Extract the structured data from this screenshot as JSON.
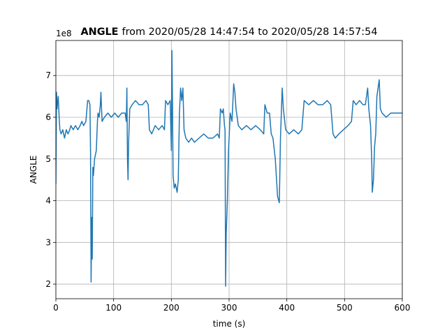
{
  "chart_data": {
    "type": "line",
    "title_bold": "ANGLE",
    "title_rest": "from 2020/05/28 14:47:54 to 2020/05/28 14:57:54",
    "offset_text": "1e8",
    "xlabel": "time (s)",
    "ylabel": "ANGLE",
    "xlim": [
      0,
      600
    ],
    "xticks": [
      0,
      100,
      200,
      300,
      400,
      500,
      600
    ],
    "ylim": [
      1.65,
      7.84
    ],
    "yticks": [
      2,
      3,
      4,
      5,
      6,
      7
    ],
    "grid": true,
    "series": [
      {
        "name": "ANGLE",
        "color": "#1f77b4",
        "x": [
          0,
          1,
          2,
          4,
          6,
          7,
          9,
          12,
          15,
          18,
          21,
          24,
          26,
          30,
          34,
          38,
          42,
          45,
          48,
          52,
          55,
          57,
          59,
          60,
          61,
          62,
          63,
          64,
          65,
          67,
          70,
          72,
          73,
          75,
          77,
          78,
          80,
          84,
          90,
          96,
          102,
          108,
          114,
          120,
          122,
          123,
          124,
          125,
          126,
          128,
          132,
          138,
          144,
          150,
          156,
          160,
          162,
          166,
          172,
          178,
          184,
          188,
          190,
          194,
          198,
          200,
          201,
          202,
          203,
          205,
          207,
          210,
          212,
          214,
          216,
          218,
          220,
          222,
          225,
          230,
          235,
          240,
          248,
          256,
          264,
          272,
          280,
          283,
          285,
          288,
          290,
          292,
          293,
          294,
          295,
          297,
          299,
          302,
          305,
          308,
          310,
          312,
          316,
          322,
          330,
          338,
          346,
          354,
          360,
          362,
          366,
          370,
          373,
          376,
          380,
          384,
          387,
          389,
          392,
          394,
          398,
          404,
          412,
          420,
          426,
          430,
          438,
          446,
          454,
          462,
          470,
          476,
          480,
          484,
          490,
          498,
          506,
          512,
          515,
          520,
          526,
          532,
          536,
          540,
          542,
          545,
          547,
          548,
          550,
          552,
          554,
          556,
          560,
          562,
          565,
          572,
          580,
          590,
          600
        ],
        "values": [
          4.4,
          6.6,
          6.2,
          6.5,
          5.9,
          5.7,
          5.6,
          5.7,
          5.5,
          5.7,
          5.6,
          5.7,
          5.8,
          5.7,
          5.8,
          5.7,
          5.8,
          5.9,
          5.8,
          5.9,
          6.4,
          6.4,
          6.3,
          5.2,
          2.05,
          3.6,
          2.6,
          4.8,
          4.6,
          5.0,
          5.2,
          5.9,
          6.1,
          6.0,
          6.3,
          6.6,
          5.9,
          6.0,
          6.1,
          6.0,
          6.1,
          6.0,
          6.1,
          6.1,
          5.9,
          6.7,
          5.0,
          4.5,
          5.4,
          6.2,
          6.3,
          6.4,
          6.3,
          6.3,
          6.4,
          6.3,
          5.7,
          5.6,
          5.8,
          5.7,
          5.8,
          5.7,
          6.4,
          6.3,
          6.4,
          5.2,
          7.6,
          6.3,
          4.6,
          4.3,
          4.4,
          4.2,
          4.5,
          6.1,
          6.7,
          6.4,
          6.7,
          5.7,
          5.5,
          5.4,
          5.5,
          5.4,
          5.5,
          5.6,
          5.5,
          5.5,
          5.6,
          5.5,
          6.2,
          6.1,
          6.2,
          5.8,
          5.7,
          1.95,
          3.2,
          4.0,
          5.2,
          6.1,
          5.9,
          6.8,
          6.6,
          6.2,
          5.8,
          5.7,
          5.8,
          5.7,
          5.8,
          5.7,
          5.6,
          6.3,
          6.1,
          6.1,
          5.6,
          5.5,
          5.0,
          4.1,
          3.95,
          5.5,
          6.7,
          6.2,
          5.7,
          5.6,
          5.7,
          5.6,
          5.7,
          6.4,
          6.3,
          6.4,
          6.3,
          6.3,
          6.4,
          6.3,
          5.6,
          5.5,
          5.6,
          5.7,
          5.8,
          5.9,
          6.4,
          6.3,
          6.4,
          6.3,
          6.3,
          6.7,
          6.2,
          5.8,
          5.0,
          4.2,
          4.5,
          5.3,
          5.6,
          6.5,
          6.9,
          6.2,
          6.1,
          6.0,
          6.1,
          6.1,
          6.1
        ]
      }
    ]
  }
}
